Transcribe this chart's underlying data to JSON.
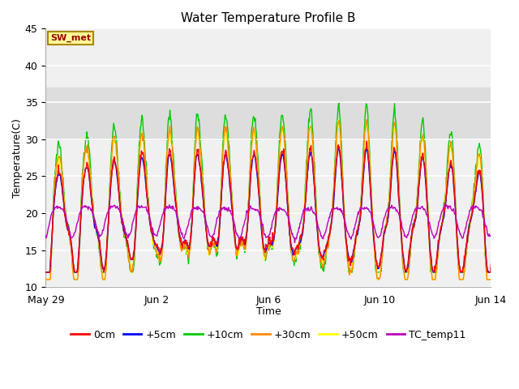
{
  "title": "Water Temperature Profile B",
  "xlabel": "Time",
  "ylabel": "Temperature(C)",
  "ylim": [
    10,
    45
  ],
  "yticks": [
    10,
    15,
    20,
    25,
    30,
    35,
    40,
    45
  ],
  "xtick_positions": [
    0,
    4,
    8,
    12,
    16
  ],
  "xtick_labels": [
    "May 29",
    "Jun 2",
    "Jun 6",
    "Jun 10",
    "Jun 14"
  ],
  "legend_labels": [
    "0cm",
    "+5cm",
    "+10cm",
    "+30cm",
    "+50cm",
    "TC_temp11"
  ],
  "legend_colors": [
    "#ff0000",
    "#0000ff",
    "#00cc00",
    "#ff8800",
    "#ffff00",
    "#bb00bb"
  ],
  "annotation_text": "SW_met",
  "annotation_color": "#990000",
  "annotation_bg": "#ffff99",
  "annotation_border": "#aa8800",
  "shaded_region": [
    30,
    37
  ],
  "shaded_color": "#dddddd",
  "background_color": "#ffffff",
  "plot_bg_color": "#f0f0f0",
  "n_days": 16,
  "n_per_day": 48
}
